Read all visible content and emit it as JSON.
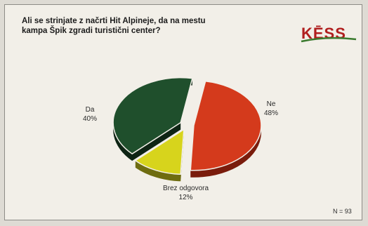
{
  "header": {
    "question_line1": "Ali se strinjate z načrti Hit Alpineje, da na mestu",
    "question_line2": "kampa Špik zgradi turistični center?"
  },
  "brand": {
    "name": "KĒSS",
    "colors": {
      "letters": "#b01e1e",
      "swoosh": "#3a7a2e"
    }
  },
  "chart_data": {
    "type": "pie",
    "title": "Ali se strinjate z načrti Hit Alpineje, da na mestu kampa Špik zgradi turistični center?",
    "slices": [
      {
        "label": "Ne",
        "value": 48,
        "value_text": "48%",
        "color": "#d43a1c",
        "side": "#7a1c0c"
      },
      {
        "label": "Brez odgovora",
        "value": 12,
        "value_text": "12%",
        "color": "#d7d41c",
        "side": "#6e6c10"
      },
      {
        "label": "Da",
        "value": 40,
        "value_text": "40%",
        "color": "#1f4f2c",
        "side": "#0e2414"
      }
    ],
    "start_angle_deg": -80,
    "exploded": true,
    "note": "N = 93"
  }
}
